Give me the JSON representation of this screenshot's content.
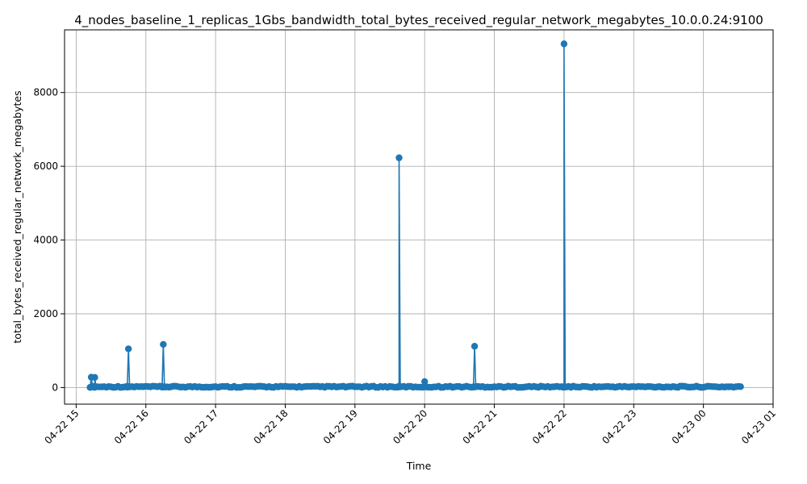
{
  "chart_data": {
    "type": "line",
    "title": "4_nodes_baseline_1_replicas_1Gbs_bandwidth_total_bytes_received_regular_network_megabytes_10.0.0.24:9100",
    "xlabel": "Time",
    "ylabel": "total_bytes_received_regular_network_megabytes",
    "x_axis_kind": "time",
    "xlim": [
      "2024-04-22 14:50",
      "2024-04-23 01:00"
    ],
    "ylim": [
      -450,
      9700
    ],
    "x_ticks": [
      {
        "value": "2024-04-22 15:00",
        "label": "04-22 15"
      },
      {
        "value": "2024-04-22 16:00",
        "label": "04-22 16"
      },
      {
        "value": "2024-04-22 17:00",
        "label": "04-22 17"
      },
      {
        "value": "2024-04-22 18:00",
        "label": "04-22 18"
      },
      {
        "value": "2024-04-22 19:00",
        "label": "04-22 19"
      },
      {
        "value": "2024-04-22 20:00",
        "label": "04-22 20"
      },
      {
        "value": "2024-04-22 21:00",
        "label": "04-22 21"
      },
      {
        "value": "2024-04-22 22:00",
        "label": "04-22 22"
      },
      {
        "value": "2024-04-22 23:00",
        "label": "04-22 23"
      },
      {
        "value": "2024-04-23 00:00",
        "label": "04-23 00"
      },
      {
        "value": "2024-04-23 01:00",
        "label": "04-23 01"
      }
    ],
    "y_ticks": [
      0,
      2000,
      4000,
      6000,
      8000
    ],
    "grid": true,
    "series_color": "#1f77b4",
    "marker": "circle",
    "baseline": {
      "start": "2024-04-22 15:12",
      "end": "2024-04-23 00:33",
      "step_minutes": 2,
      "typical_value": 15,
      "variation": 35
    },
    "points": [
      {
        "x": "2024-04-22 15:12",
        "y": 5
      },
      {
        "x": "2024-04-22 15:13",
        "y": 280
      },
      {
        "x": "2024-04-22 15:14",
        "y": 30
      },
      {
        "x": "2024-04-22 15:15",
        "y": 10
      },
      {
        "x": "2024-04-22 15:16",
        "y": 275
      },
      {
        "x": "2024-04-22 15:17",
        "y": 20
      },
      {
        "x": "2024-04-22 15:44",
        "y": 10
      },
      {
        "x": "2024-04-22 15:45",
        "y": 1050
      },
      {
        "x": "2024-04-22 15:46",
        "y": 20
      },
      {
        "x": "2024-04-22 16:14",
        "y": 10
      },
      {
        "x": "2024-04-22 16:15",
        "y": 1170
      },
      {
        "x": "2024-04-22 16:16",
        "y": 20
      },
      {
        "x": "2024-04-22 19:37",
        "y": 10
      },
      {
        "x": "2024-04-22 19:38",
        "y": 6230
      },
      {
        "x": "2024-04-22 19:39",
        "y": 20
      },
      {
        "x": "2024-04-22 19:59",
        "y": 10
      },
      {
        "x": "2024-04-22 20:00",
        "y": 160
      },
      {
        "x": "2024-04-22 20:01",
        "y": 20
      },
      {
        "x": "2024-04-22 20:42",
        "y": 10
      },
      {
        "x": "2024-04-22 20:43",
        "y": 1120
      },
      {
        "x": "2024-04-22 20:44",
        "y": 20
      },
      {
        "x": "2024-04-22 21:59",
        "y": 10
      },
      {
        "x": "2024-04-22 22:00",
        "y": 9320
      },
      {
        "x": "2024-04-22 22:01",
        "y": 20
      }
    ]
  }
}
